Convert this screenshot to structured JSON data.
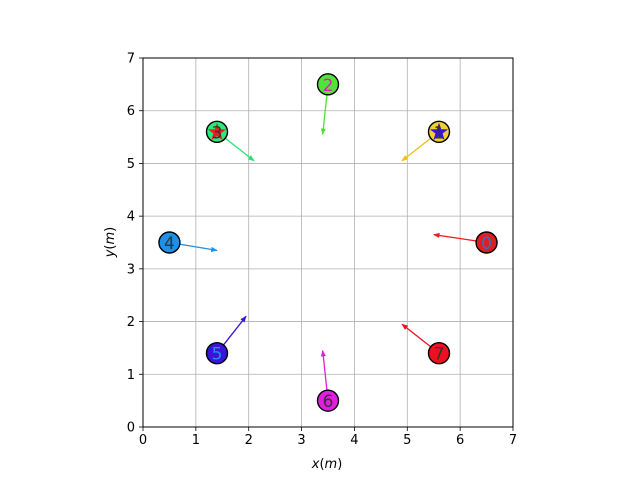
{
  "chart_data": {
    "type": "scatter",
    "title": "",
    "xlabel": "x(m)",
    "ylabel": "y(m)",
    "xlabel_parts": {
      "var": "x",
      "unit_open": "(",
      "unit": "m",
      "unit_close": ")"
    },
    "ylabel_parts": {
      "var": "y",
      "unit_open": "(",
      "unit": "m",
      "unit_close": ")"
    },
    "xlim": [
      0,
      7
    ],
    "ylim": [
      0,
      7
    ],
    "xticks": [
      0,
      1,
      2,
      3,
      4,
      5,
      6,
      7
    ],
    "yticks": [
      0,
      1,
      2,
      3,
      4,
      5,
      6,
      7
    ],
    "grid": true,
    "agents": [
      {
        "id": "0",
        "x": 6.5,
        "y": 3.5,
        "fill": "#e01e1e",
        "label_color": "#1f77d4",
        "arrow_color": "#ee1c1c",
        "arrow_to": [
          5.5,
          3.65
        ],
        "star": false
      },
      {
        "id": "1",
        "x": 5.6,
        "y": 5.6,
        "fill": "#f0d030",
        "label_color": "#333333",
        "arrow_color": "#f0c010",
        "arrow_to": [
          4.9,
          5.05
        ],
        "star": true,
        "star_color": "#3a14d8"
      },
      {
        "id": "2",
        "x": 3.5,
        "y": 6.5,
        "fill": "#52e33a",
        "label_color": "#d81ec8",
        "arrow_color": "#48e82c",
        "arrow_to": [
          3.4,
          5.55
        ],
        "star": false
      },
      {
        "id": "3",
        "x": 1.4,
        "y": 5.6,
        "fill": "#2ee87a",
        "label_color": "#333333",
        "arrow_color": "#2ce070",
        "arrow_to": [
          2.1,
          5.05
        ],
        "star": true,
        "star_color": "#ee1c1c"
      },
      {
        "id": "4",
        "x": 0.5,
        "y": 3.5,
        "fill": "#1e90e8",
        "label_color": "#333333",
        "arrow_color": "#1e90e8",
        "arrow_to": [
          1.4,
          3.35
        ],
        "star": false
      },
      {
        "id": "5",
        "x": 1.4,
        "y": 1.4,
        "fill": "#3a14d8",
        "label_color": "#1e90e8",
        "arrow_color": "#3a14d8",
        "arrow_to": [
          1.95,
          2.1
        ],
        "star": false
      },
      {
        "id": "6",
        "x": 3.5,
        "y": 0.5,
        "fill": "#e01ee0",
        "label_color": "#333333",
        "arrow_color": "#e01ee0",
        "arrow_to": [
          3.4,
          1.45
        ],
        "star": false
      },
      {
        "id": "7",
        "x": 5.6,
        "y": 1.4,
        "fill": "#ee1020",
        "label_color": "#333333",
        "arrow_color": "#ee1020",
        "arrow_to": [
          4.9,
          1.95
        ],
        "star": false
      }
    ]
  }
}
